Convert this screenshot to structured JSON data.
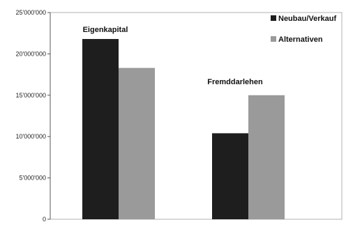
{
  "chart_data": {
    "type": "bar",
    "categories": [
      "Eigenkapital",
      "Fremddarlehen"
    ],
    "series": [
      {
        "name": "Neubau/Verkauf",
        "values": [
          21800000,
          10400000
        ],
        "color": "#1e1e1e"
      },
      {
        "name": "Alternativen",
        "values": [
          18300000,
          15000000
        ],
        "color": "#9a9a9a"
      }
    ],
    "ylim": [
      0,
      25000000
    ],
    "yticks": [
      0,
      5000000,
      10000000,
      15000000,
      20000000,
      25000000
    ],
    "ytick_labels": [
      "0",
      "5'000'000",
      "10'000'000",
      "15'000'000",
      "20'000'000",
      "25'000'000"
    ],
    "legend_position": "top-right",
    "grid": false,
    "title": "",
    "xlabel": "",
    "ylabel": ""
  }
}
